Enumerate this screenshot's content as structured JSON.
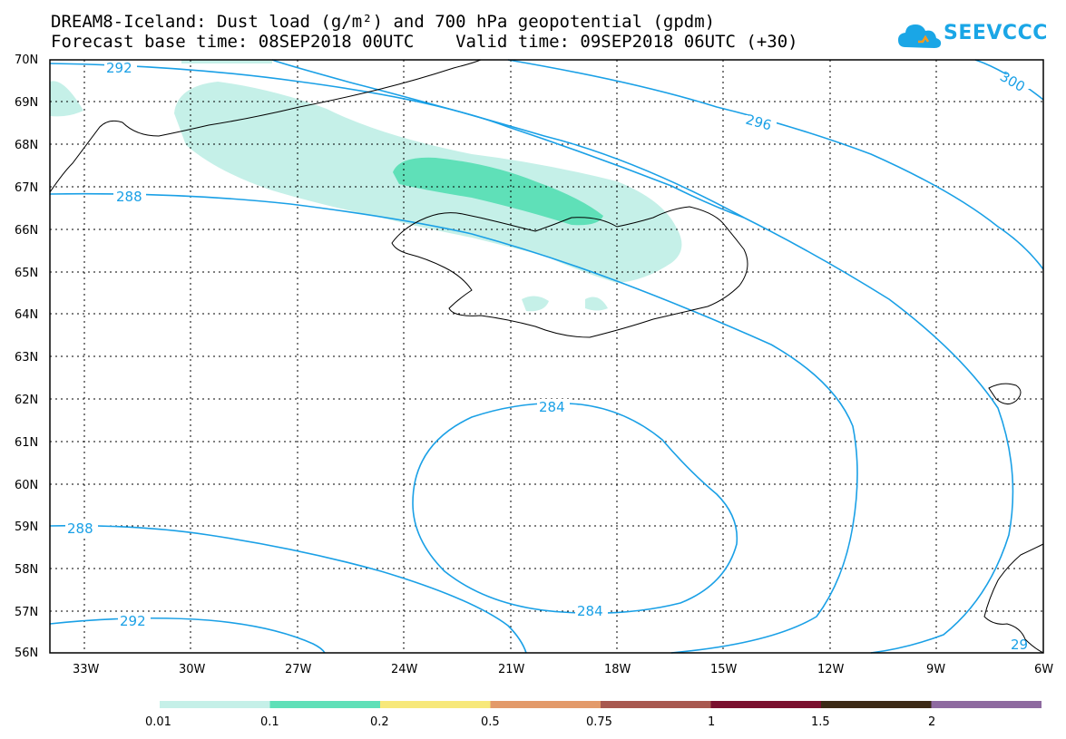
{
  "header": {
    "title_line1": "DREAM8-Iceland: Dust load (g/m²) and 700 hPa geopotential (gpdm)",
    "title_line2": "Forecast base time: 08SEP2018 00UTC    Valid time: 09SEP2018 06UTC (+30)",
    "logo_text": "SEEVCCC"
  },
  "map": {
    "lat_labels": [
      "70N",
      "69N",
      "68N",
      "67N",
      "66N",
      "65N",
      "64N",
      "63N",
      "62N",
      "61N",
      "60N",
      "59N",
      "58N",
      "57N",
      "56N"
    ],
    "lon_labels": [
      "33W",
      "30W",
      "27W",
      "24W",
      "21W",
      "18W",
      "15W",
      "12W",
      "9W",
      "6W"
    ],
    "contour_labels": [
      "292",
      "288",
      "296",
      "300",
      "284",
      "288",
      "292",
      "284",
      "29"
    ],
    "colors": {
      "contour": "#1aa0e6",
      "coast": "#000000",
      "dust_low": "#c5f0e8",
      "dust_mid": "#5fe0b8"
    }
  },
  "legend": {
    "labels": [
      "0.01",
      "0.1",
      "0.2",
      "0.5",
      "0.75",
      "1",
      "1.5",
      "2"
    ],
    "colors": [
      "#c5f0e8",
      "#5fe0b8",
      "#f7e87a",
      "#e39a6a",
      "#a8584f",
      "#7a0f2e",
      "#3c2a16",
      "#8e6aa0"
    ]
  }
}
